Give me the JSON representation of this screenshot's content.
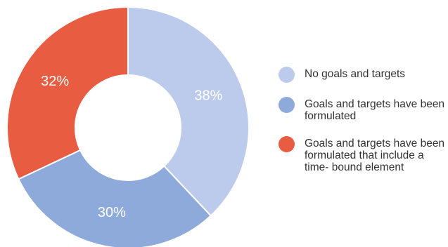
{
  "chart_data": {
    "type": "pie",
    "donut": true,
    "title": "",
    "categories": [
      "No goals and targets",
      "Goals and targets have been formulated",
      "Goals and targets have been formulated that include a time- bound element"
    ],
    "values": [
      38,
      30,
      32
    ],
    "labels": [
      "38%",
      "30%",
      "32%"
    ],
    "colors": [
      "#bccbeb",
      "#8eaadb",
      "#e85c41"
    ],
    "legend_position": "right"
  }
}
